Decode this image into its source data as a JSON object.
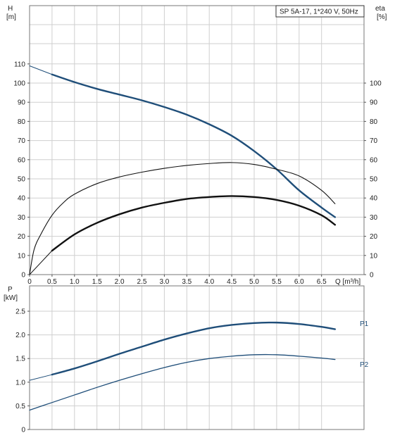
{
  "chart_data": [
    {
      "type": "line",
      "title": "SP 5A-17, 1*240 V, 50Hz",
      "xlabel": "Q [m³/h]",
      "ylabel_left_name": "H",
      "ylabel_left_unit": "[m]",
      "ylabel_right_name": "eta",
      "ylabel_right_unit": "[%]",
      "xlim": [
        0,
        7
      ],
      "ylim": [
        0,
        120
      ],
      "grid": true,
      "x_ticks": [
        "0",
        "0.5",
        "1.0",
        "1.5",
        "2.0",
        "2.5",
        "3.0",
        "3.5",
        "4.0",
        "4.5",
        "5.0",
        "5.5",
        "6.0",
        "6.5"
      ],
      "y_ticks_left": [
        "0",
        "10",
        "20",
        "30",
        "40",
        "50",
        "60",
        "70",
        "80",
        "90",
        "100",
        "110"
      ],
      "y_ticks_right": [
        "0",
        "10",
        "20",
        "30",
        "40",
        "50",
        "60",
        "70",
        "80",
        "90",
        "100"
      ],
      "series": [
        {
          "key": "head-thin",
          "color": "#1f4e79",
          "x": [
            0,
            0.5
          ],
          "y": [
            109,
            104.5
          ]
        },
        {
          "key": "head",
          "color": "#1f4e79",
          "x": [
            0.5,
            1.0,
            1.5,
            2.0,
            2.5,
            3.0,
            3.5,
            4.0,
            4.5,
            5.0,
            5.5,
            6.0,
            6.5,
            6.8
          ],
          "y": [
            104.5,
            100.5,
            97,
            94,
            91,
            87.5,
            83.5,
            78.5,
            72.5,
            64.5,
            55,
            44,
            35,
            30
          ]
        },
        {
          "key": "eta-total-thin",
          "color": "#111111",
          "x": [
            0,
            0.1,
            0.25,
            0.5,
            0.75,
            1.0,
            1.5,
            2.0,
            2.5,
            3.0,
            3.5,
            4.0,
            4.5,
            5.0,
            5.5,
            6.0,
            6.5,
            6.8
          ],
          "y": [
            0,
            13,
            21,
            31,
            37.5,
            42,
            47.5,
            51,
            53.5,
            55.5,
            57,
            58,
            58.5,
            57.5,
            55,
            51.5,
            44,
            37
          ]
        },
        {
          "key": "eta-pump-thin",
          "color": "#111111",
          "x": [
            0,
            0.5
          ],
          "y": [
            0,
            12.5
          ]
        },
        {
          "key": "eta-pump",
          "color": "#111111",
          "x": [
            0.5,
            1.0,
            1.5,
            2.0,
            2.5,
            3.0,
            3.5,
            4.0,
            4.5,
            5.0,
            5.5,
            6.0,
            6.5,
            6.8
          ],
          "y": [
            12.5,
            21,
            27,
            31.5,
            35,
            37.5,
            39.5,
            40.5,
            41,
            40.5,
            39,
            36,
            31,
            26
          ]
        }
      ]
    },
    {
      "type": "line",
      "xlim": [
        0,
        7
      ],
      "ylim": [
        0,
        2.75
      ],
      "ylabel_name": "P",
      "ylabel_unit": "[kW]",
      "grid": true,
      "y_ticks": [
        "0",
        "0.5",
        "1.0",
        "1.5",
        "2.0",
        "2.5"
      ],
      "series": [
        {
          "key": "p1-thin",
          "name": "P1",
          "color": "#1f4e79",
          "x": [
            0,
            0.5
          ],
          "y": [
            1.04,
            1.16
          ]
        },
        {
          "key": "p1",
          "name": "P1",
          "color": "#1f4e79",
          "x": [
            0.5,
            1.0,
            1.5,
            2.0,
            2.5,
            3.0,
            3.5,
            4.0,
            4.5,
            5.0,
            5.5,
            6.0,
            6.5,
            6.8
          ],
          "y": [
            1.16,
            1.29,
            1.44,
            1.6,
            1.75,
            1.9,
            2.03,
            2.14,
            2.21,
            2.25,
            2.26,
            2.23,
            2.17,
            2.12
          ]
        },
        {
          "key": "p2",
          "name": "P2",
          "color": "#1f4e79",
          "x": [
            0,
            0.5,
            1.0,
            1.5,
            2.0,
            2.5,
            3.0,
            3.5,
            4.0,
            4.5,
            5.0,
            5.5,
            6.0,
            6.5,
            6.8
          ],
          "y": [
            0.41,
            0.57,
            0.73,
            0.89,
            1.04,
            1.18,
            1.31,
            1.42,
            1.5,
            1.55,
            1.58,
            1.58,
            1.55,
            1.51,
            1.48
          ]
        }
      ],
      "labels": [
        "P1",
        "P2"
      ]
    }
  ]
}
